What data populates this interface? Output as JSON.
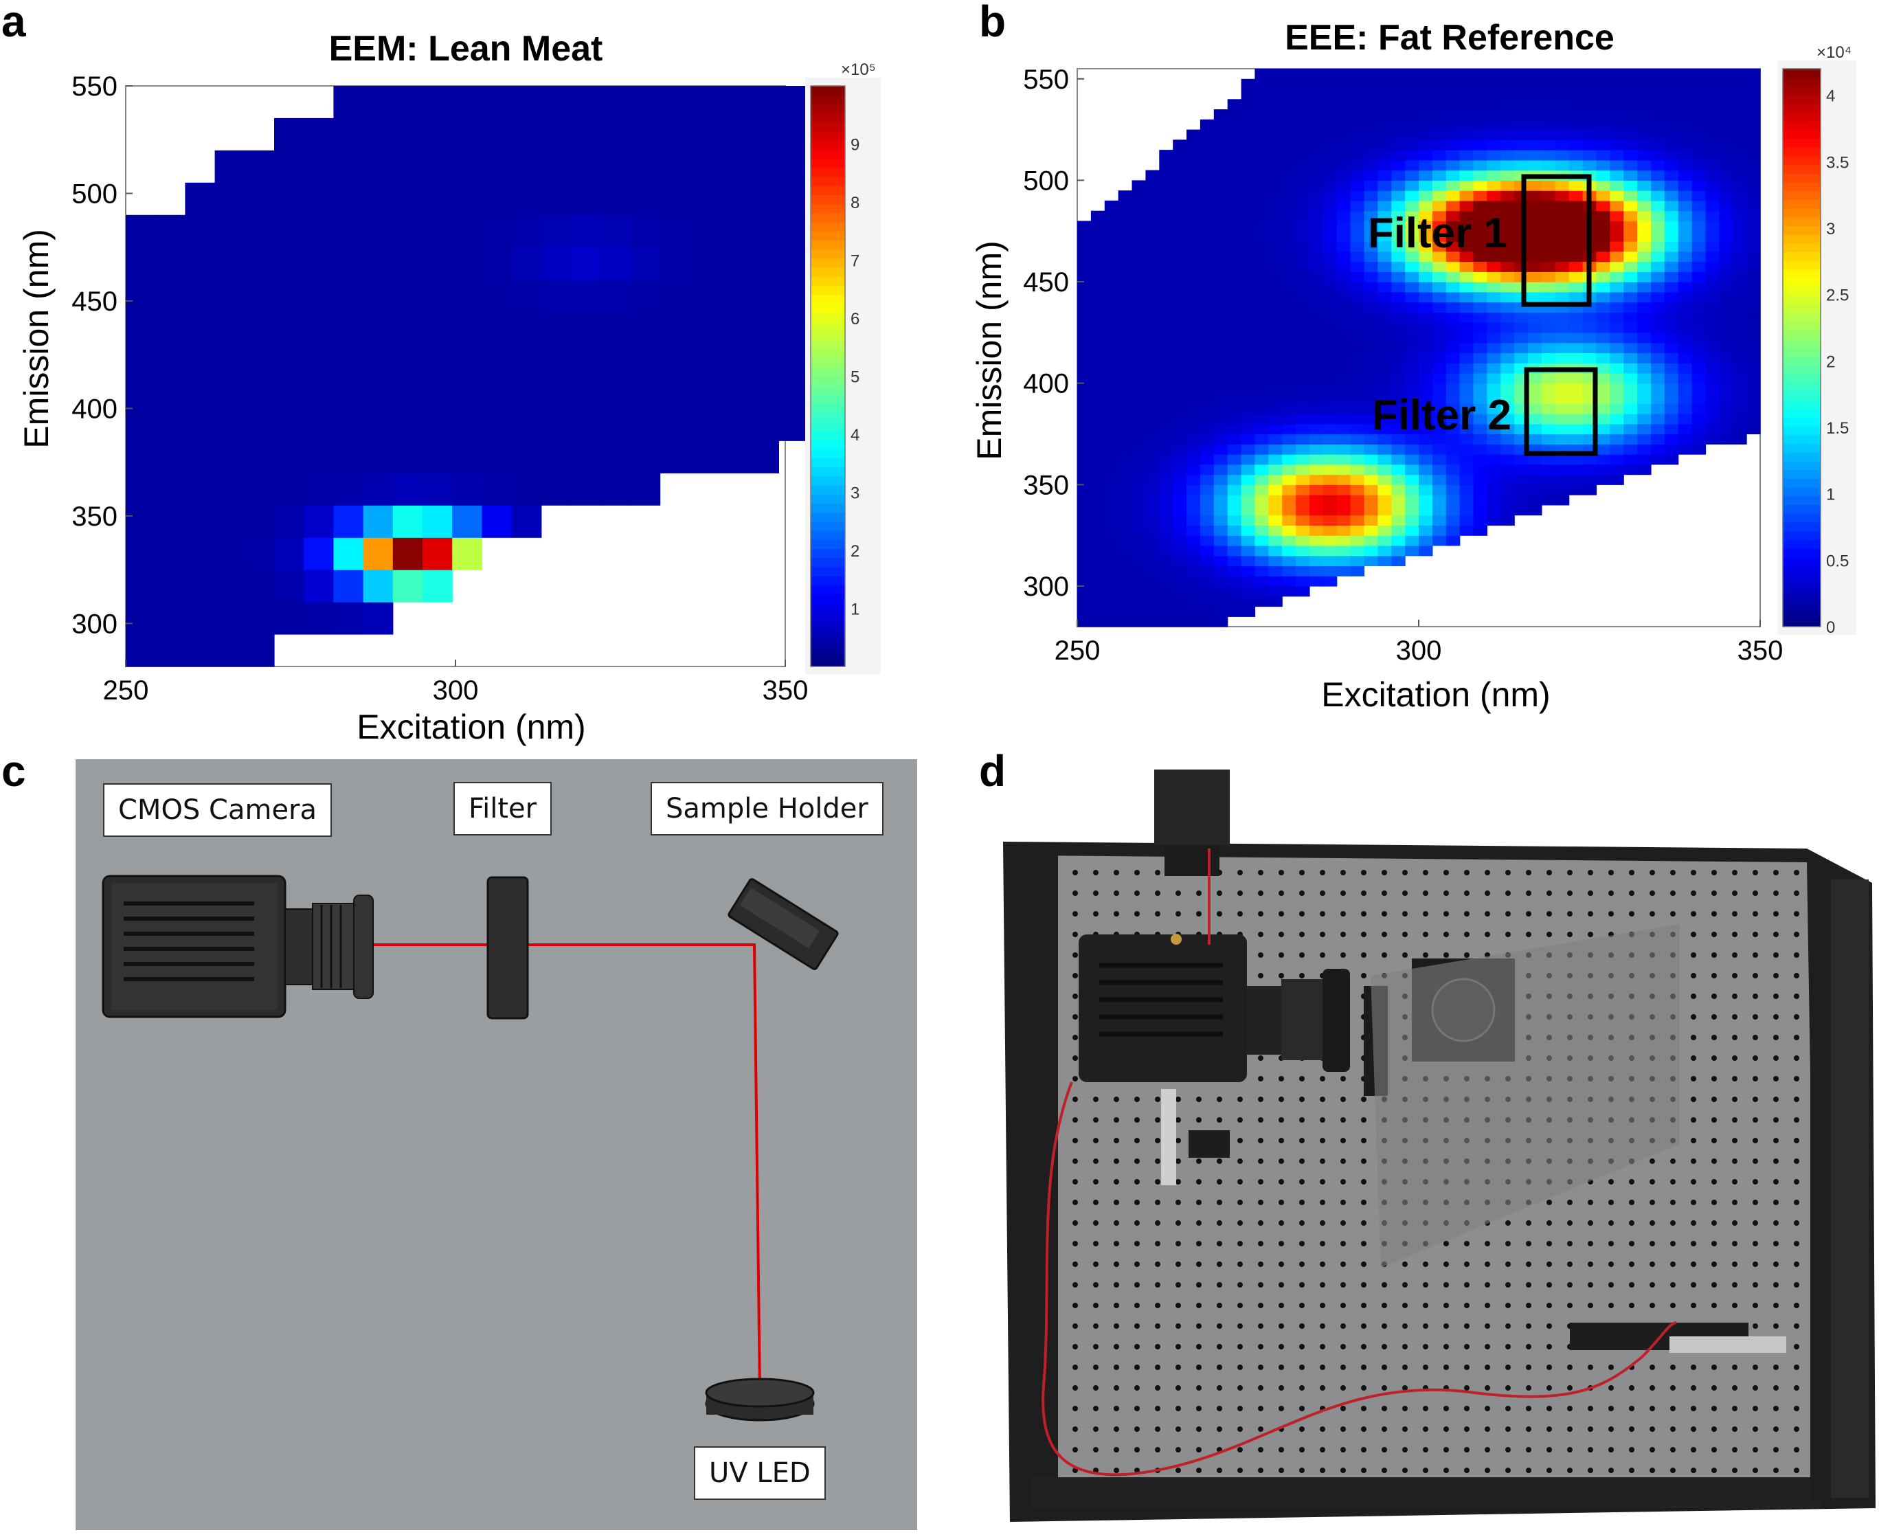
{
  "panels": {
    "a": "a",
    "b": "b",
    "c": "c",
    "d": "d"
  },
  "chart_data": [
    {
      "type": "heatmap",
      "title": "EEM: Lean Meat",
      "xlabel": "Excitation (nm)",
      "ylabel": "Emission (nm)",
      "xlim": [
        250,
        350
      ],
      "ylim": [
        280,
        550
      ],
      "xticks": [
        "250",
        "300",
        "350"
      ],
      "yticks": [
        "300",
        "350",
        "400",
        "450",
        "500",
        "550"
      ],
      "colorbar": {
        "multiplier": "×10⁵",
        "ticks": [
          "1",
          "2",
          "3",
          "4",
          "5",
          "6",
          "7",
          "8",
          "9"
        ],
        "range": [
          0,
          10
        ],
        "colormap": "jet"
      },
      "peaks": [
        {
          "excitation": 294,
          "emission": 332,
          "value": 9.7
        },
        {
          "excitation": 320,
          "emission": 470,
          "value": 0.4
        }
      ]
    },
    {
      "type": "heatmap",
      "title": "EEE: Fat Reference",
      "xlabel": "Excitation (nm)",
      "ylabel": "Emission (nm)",
      "xlim": [
        250,
        350
      ],
      "ylim": [
        280,
        555
      ],
      "xticks": [
        "250",
        "300",
        "350"
      ],
      "yticks": [
        "300",
        "350",
        "400",
        "450",
        "500",
        "550"
      ],
      "colorbar": {
        "multiplier": "×10⁴",
        "ticks": [
          "0",
          "0.5",
          "1",
          "1.5",
          "2",
          "2.5",
          "3",
          "3.5",
          "4"
        ],
        "range": [
          0,
          4.2
        ],
        "colormap": "jet"
      },
      "peaks": [
        {
          "excitation": 322,
          "emission": 475,
          "value": 4.0
        },
        {
          "excitation": 310,
          "emission": 475,
          "value": 3.5
        },
        {
          "excitation": 287,
          "emission": 340,
          "value": 3.6
        },
        {
          "excitation": 322,
          "emission": 395,
          "value": 2.3
        }
      ],
      "annotations": [
        "Filter 1",
        "Filter 2"
      ]
    }
  ],
  "schematic": {
    "labels": {
      "camera": "CMOS Camera",
      "filter": "Filter",
      "sample_holder": "Sample Holder",
      "uv_led": "UV LED"
    },
    "beam_color": "#e00000",
    "background": "#9a9ea0"
  },
  "photo": {
    "breadboard_color": "#8a8c8e",
    "frame_color": "#1e1e1e",
    "wire_color": "#c0202a"
  }
}
